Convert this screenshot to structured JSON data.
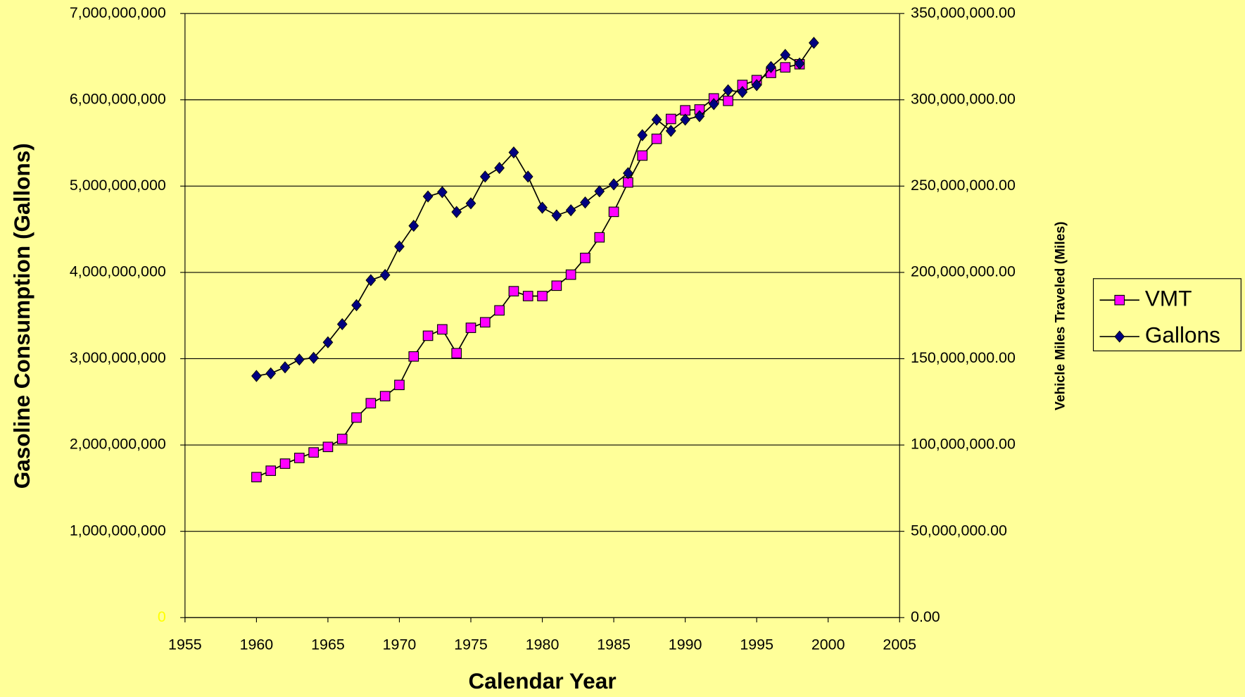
{
  "chart_data": {
    "type": "line",
    "x_label": "Calendar Year",
    "y_label": "Gasoline Consumption (Gallons)",
    "y2_label": "Vehicle Miles Traveled (Miles)",
    "x": [
      1960,
      1961,
      1962,
      1963,
      1964,
      1965,
      1966,
      1967,
      1968,
      1969,
      1970,
      1971,
      1972,
      1973,
      1974,
      1975,
      1976,
      1977,
      1978,
      1979,
      1980,
      1981,
      1982,
      1983,
      1984,
      1985,
      1986,
      1987,
      1988,
      1989,
      1990,
      1991,
      1992,
      1993,
      1994,
      1995,
      1996,
      1997,
      1998,
      1999
    ],
    "series": [
      {
        "name": "VMT",
        "color": "#ff00ff",
        "marker": "square",
        "axis": "y2",
        "values": [
          81400000,
          85100000,
          89200000,
          92500000,
          95700000,
          98900000,
          103500000,
          115900000,
          124200000,
          128300000,
          134800000,
          151300000,
          163300000,
          167000000,
          153200000,
          167900000,
          171100000,
          178000000,
          189100000,
          186300000,
          186300000,
          192300000,
          198700000,
          208400000,
          220300000,
          235100000,
          252100000,
          267700000,
          277400000,
          288900000,
          293900000,
          294400000,
          300800000,
          299400000,
          308600000,
          311400000,
          315600000,
          318800000,
          320600000,
          null
        ]
      },
      {
        "name": "Gallons",
        "color": "#000080",
        "marker": "diamond",
        "axis": "y",
        "values": [
          2800000000,
          2830000000,
          2900000000,
          2990000000,
          3010000000,
          3190000000,
          3400000000,
          3620000000,
          3910000000,
          3970000000,
          4300000000,
          4540000000,
          4880000000,
          4930000000,
          4700000000,
          4800000000,
          5110000000,
          5210000000,
          5390000000,
          5110000000,
          4750000000,
          4660000000,
          4720000000,
          4810000000,
          4940000000,
          5020000000,
          5150000000,
          5590000000,
          5770000000,
          5640000000,
          5770000000,
          5810000000,
          5950000000,
          6110000000,
          6090000000,
          6170000000,
          6380000000,
          6520000000,
          6420000000,
          6660000000
        ]
      }
    ],
    "xlim": [
      1955,
      2005
    ],
    "xticks": [
      1955,
      1960,
      1965,
      1970,
      1975,
      1980,
      1985,
      1990,
      1995,
      2000,
      2005
    ],
    "ylim": [
      0,
      7000000000
    ],
    "yticks": [
      0,
      {
        "value": 1000000000,
        "label": "1,000,000,000"
      },
      {
        "value": 2000000000,
        "label": "2,000,000,000"
      },
      {
        "value": 3000000000,
        "label": "3,000,000,000"
      },
      {
        "value": 4000000000,
        "label": "4,000,000,000"
      },
      {
        "value": 5000000000,
        "label": "5,000,000,000"
      },
      {
        "value": 6000000000,
        "label": "6,000,000,000"
      },
      {
        "value": 7000000000,
        "label": "7,000,000,000"
      }
    ],
    "y2lim": [
      0,
      350000000
    ],
    "y2ticks": [
      {
        "value": 0,
        "label": "0.00"
      },
      {
        "value": 50000000,
        "label": "50,000,000.00"
      },
      {
        "value": 100000000,
        "label": "100,000,000.00"
      },
      {
        "value": 150000000,
        "label": "150,000,000.00"
      },
      {
        "value": 200000000,
        "label": "200,000,000.00"
      },
      {
        "value": 250000000,
        "label": "250,000,000.00"
      },
      {
        "value": 300000000,
        "label": "300,000,000.00"
      },
      {
        "value": 350000000,
        "label": "350,000,000.00"
      }
    ],
    "grid": true,
    "legend": "right"
  }
}
